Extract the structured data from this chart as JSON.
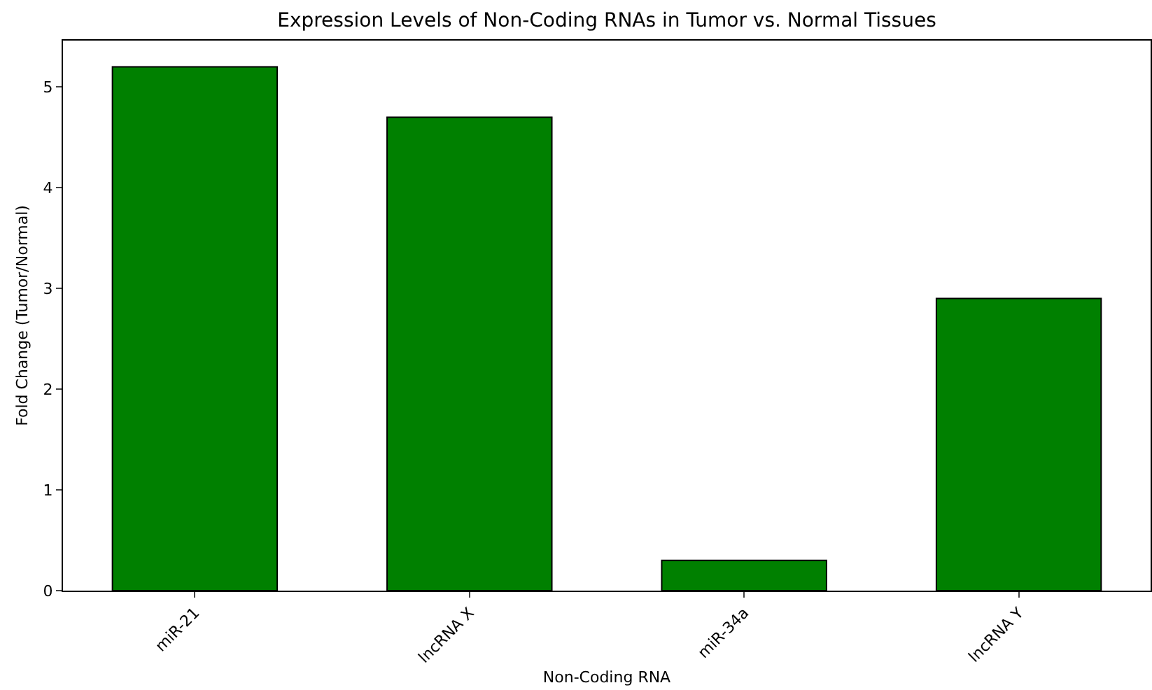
{
  "chart_data": {
    "type": "bar",
    "title": "Expression Levels of Non-Coding RNAs in Tumor vs. Normal Tissues",
    "xlabel": "Non-Coding RNA",
    "ylabel": "Fold Change (Tumor/Normal)",
    "categories": [
      "miR-21",
      "lncRNA X",
      "miR-34a",
      "lncRNA Y"
    ],
    "values": [
      5.2,
      4.7,
      0.3,
      2.9
    ],
    "color": "#008000",
    "ylim": [
      0,
      5.46
    ],
    "yticks": [
      0,
      1,
      2,
      3,
      4,
      5
    ]
  }
}
